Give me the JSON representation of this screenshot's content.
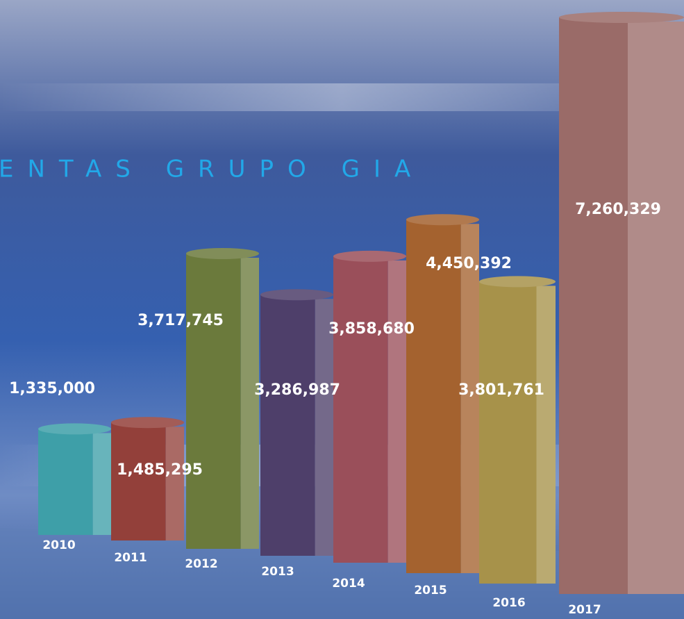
{
  "chart_data": {
    "type": "bar3d",
    "title": "ENTAS GRUPO GIA",
    "categories": [
      "2010",
      "2011",
      "2012",
      "2013",
      "2014",
      "2015",
      "2016",
      "2017"
    ],
    "values": [
      1335000,
      1485295,
      3717745,
      3286987,
      3858680,
      4450392,
      3801761,
      7260329
    ],
    "value_labels": [
      "1,335,000",
      "1,485,295",
      "3,717,745",
      "3,286,987",
      "3,858,680",
      "4,450,392",
      "3,801,761",
      "7,260,329"
    ],
    "colors": [
      "#3e9fa8",
      "#93403a",
      "#6b7a3c",
      "#4e3f6a",
      "#9a4f5a",
      "#a4622f",
      "#a7924a",
      "#9a6b68"
    ]
  }
}
